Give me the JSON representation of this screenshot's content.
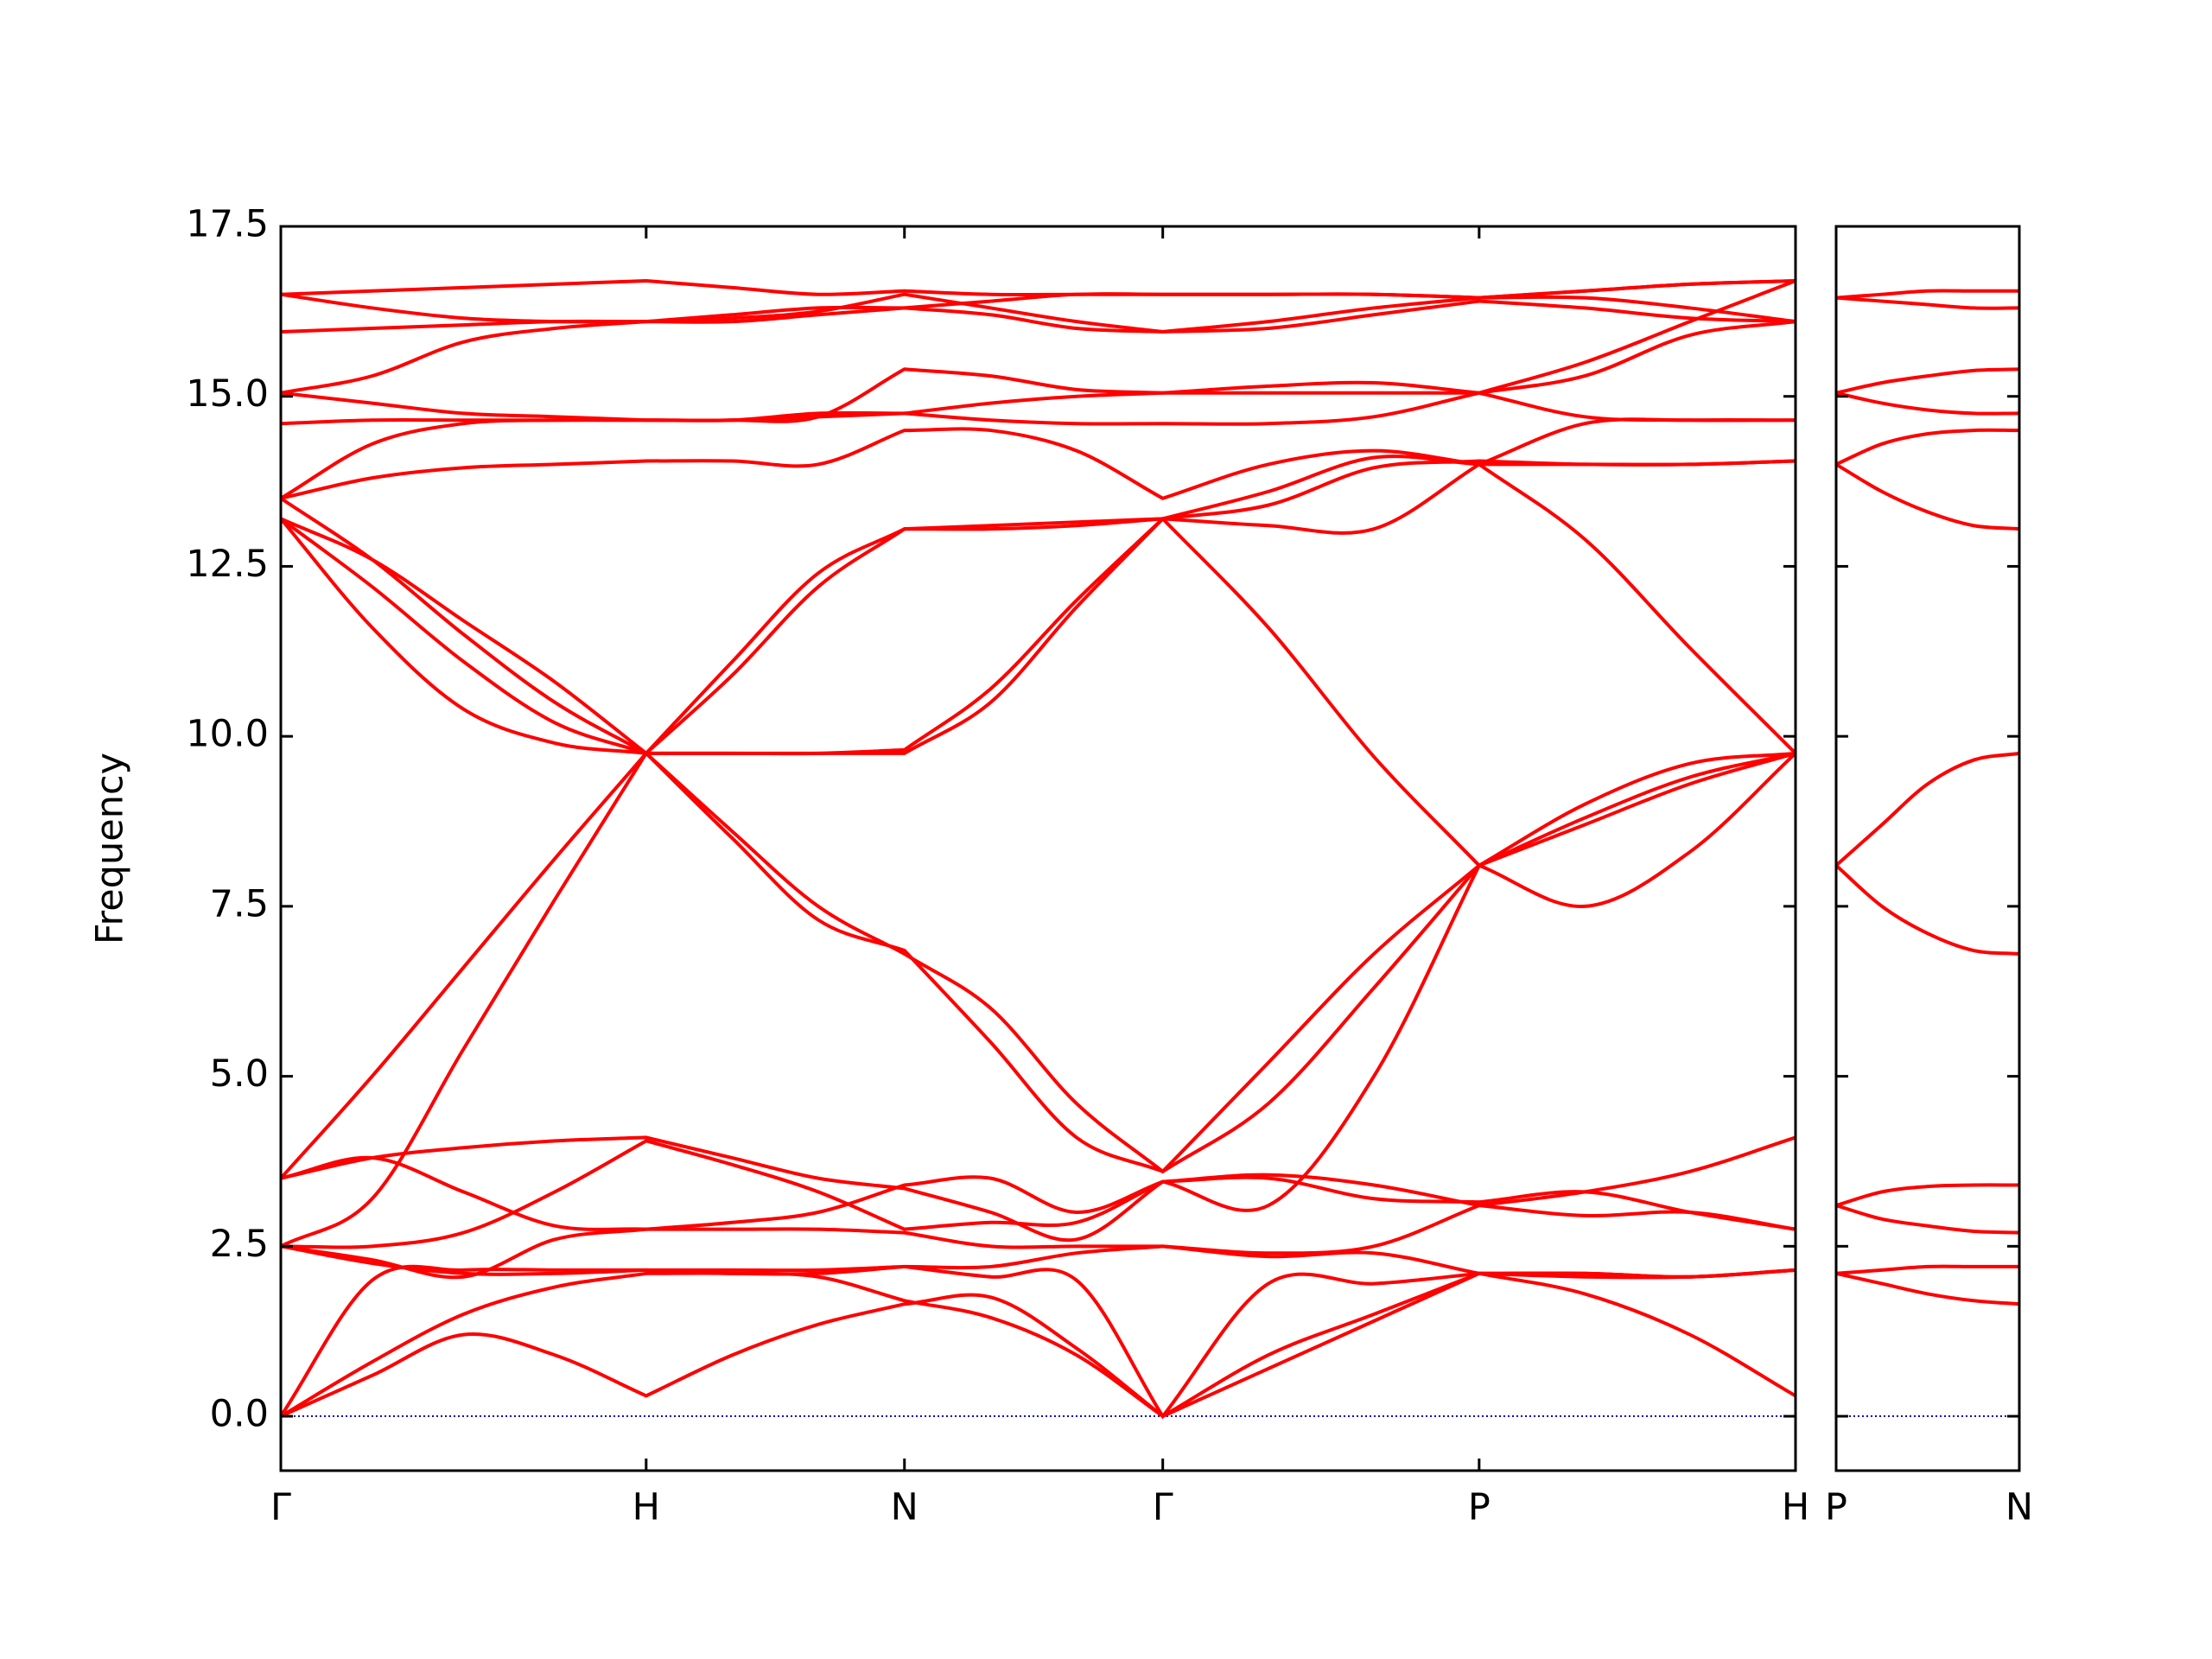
{
  "chart_data": [
    {
      "type": "line",
      "ylabel": "Frequency",
      "color": "#ff0000",
      "zero_line": {
        "value": 0,
        "color": "#0000cd"
      },
      "xlim": [
        0,
        4.146
      ],
      "ylim": [
        -0.8,
        17.5
      ],
      "xticks": [
        {
          "value": 0,
          "label": "Γ"
        },
        {
          "value": 1,
          "label": "H"
        },
        {
          "value": 1.707,
          "label": "N"
        },
        {
          "value": 2.414,
          "label": "Γ"
        },
        {
          "value": 3.28,
          "label": "P"
        },
        {
          "value": 4.146,
          "label": "H"
        }
      ],
      "yticks": [
        {
          "value": 0,
          "label": "0.0"
        },
        2.5,
        {
          "value": 5,
          "label": "5.0"
        },
        7.5,
        {
          "value": 10,
          "label": "10.0"
        },
        12.5,
        {
          "value": 15,
          "label": "15.0"
        },
        17.5
      ],
      "ytick_labels": true,
      "x": [
        0,
        0.25,
        0.5,
        0.75,
        1,
        1.236,
        1.471,
        1.707,
        1.943,
        2.178,
        2.414,
        2.703,
        2.992,
        3.28,
        3.569,
        3.857,
        4.146
      ],
      "series": [
        {
          "values": [
            0,
            0.6,
            1.2,
            0.9,
            0.3,
            0.9,
            1.35,
            1.65,
            1.75,
            1.0,
            0,
            0.9,
            1.5,
            2.1,
            1.8,
            1.2,
            0.3
          ]
        },
        {
          "values": [
            0,
            0.8,
            1.5,
            1.9,
            2.1,
            2.1,
            2.05,
            1.7,
            1.45,
            0.9,
            0,
            0.7,
            1.4,
            2.1,
            2.1,
            2.05,
            2.15
          ]
        },
        {
          "values": [
            0,
            2.0,
            2.15,
            2.15,
            2.15,
            2.1,
            2.1,
            2.2,
            2.05,
            2.0,
            0,
            1.95,
            1.95,
            2.1,
            2.05,
            2.05,
            2.15
          ]
        },
        {
          "values": [
            2.5,
            2.25,
            2.1,
            2.1,
            2.15,
            2.15,
            2.15,
            2.2,
            2.2,
            2.4,
            2.5,
            2.35,
            2.4,
            2.1,
            2.1,
            2.05,
            2.15
          ]
        },
        {
          "values": [
            2.5,
            2.3,
            2.05,
            2.6,
            2.75,
            2.75,
            2.75,
            2.7,
            2.5,
            2.5,
            2.5,
            2.4,
            2.5,
            3.1,
            2.95,
            3.0,
            2.75
          ]
        },
        {
          "values": [
            2.5,
            2.5,
            2.7,
            3.3,
            4.05,
            3.7,
            3.3,
            2.75,
            2.85,
            2.85,
            3.45,
            3.55,
            3.4,
            3.1,
            3.3,
            3.6,
            4.1
          ]
        },
        {
          "values": [
            3.5,
            3.8,
            3.3,
            2.8,
            2.75,
            2.85,
            3.0,
            3.4,
            3.5,
            3.0,
            3.45,
            3.5,
            3.2,
            3.15,
            3.3,
            3.0,
            2.75
          ]
        },
        {
          "values": [
            3.5,
            3.8,
            3.95,
            4.05,
            4.1,
            3.8,
            3.5,
            3.35,
            3.0,
            2.6,
            3.45,
            3.1,
            5.0,
            8.1,
            8.8,
            9.4,
            9.75
          ]
        },
        {
          "values": [
            3.5,
            5.0,
            6.6,
            8.2,
            9.75,
            11.1,
            12.4,
            13.05,
            13.1,
            13.15,
            13.2,
            11.6,
            9.7,
            8.1,
            8.7,
            9.3,
            9.75
          ]
        },
        {
          "values": [
            2.5,
            3.2,
            5.4,
            7.6,
            9.75,
            10.9,
            12.2,
            13.05,
            13.05,
            13.1,
            13.2,
            13.4,
            13.95,
            14.05,
            14.0,
            14.0,
            14.05
          ]
        },
        {
          "values": [
            13.2,
            11.6,
            10.4,
            9.9,
            9.75,
            9.75,
            9.75,
            9.75,
            10.5,
            11.9,
            13.2,
            13.1,
            13.05,
            14.0,
            12.9,
            11.3,
            9.75
          ]
        },
        {
          "values": [
            13.2,
            12.2,
            11.1,
            10.2,
            9.75,
            8.6,
            7.5,
            6.8,
            6.0,
            4.6,
            3.6,
            4.6,
            6.3,
            8.1,
            7.5,
            8.3,
            9.75
          ]
        },
        {
          "values": [
            13.5,
            12.6,
            11.5,
            10.5,
            9.75,
            8.5,
            7.3,
            6.85,
            5.5,
            4.1,
            3.6,
            5.2,
            6.8,
            8.1,
            9.0,
            9.6,
            9.75
          ]
        },
        {
          "values": [
            13.2,
            12.6,
            11.7,
            10.8,
            9.75,
            9.75,
            9.75,
            9.8,
            10.7,
            12.0,
            13.2,
            13.6,
            14.1,
            14.0,
            14.0,
            14.0,
            14.05
          ]
        },
        {
          "values": [
            13.5,
            13.8,
            13.95,
            14.0,
            14.05,
            14.05,
            14.0,
            14.5,
            14.5,
            14.2,
            13.5,
            14.0,
            14.2,
            14.0,
            14.6,
            14.65,
            14.65
          ]
        },
        {
          "values": [
            13.5,
            14.3,
            14.6,
            14.65,
            14.65,
            14.65,
            14.7,
            14.75,
            14.9,
            15.0,
            15.05,
            15.15,
            15.2,
            15.05,
            15.5,
            16.1,
            16.7
          ]
        },
        {
          "values": [
            14.6,
            14.65,
            14.65,
            14.65,
            14.65,
            14.65,
            14.75,
            14.75,
            14.65,
            14.6,
            14.6,
            14.6,
            14.7,
            15.05,
            15.3,
            15.9,
            16.1
          ]
        },
        {
          "values": [
            15.05,
            15.3,
            15.8,
            16.0,
            16.1,
            16.1,
            16.2,
            16.3,
            16.2,
            16.0,
            15.95,
            16.1,
            16.3,
            16.45,
            16.55,
            16.65,
            16.7
          ]
        },
        {
          "values": [
            15.05,
            14.9,
            14.75,
            14.7,
            14.65,
            14.65,
            14.7,
            15.4,
            15.3,
            15.1,
            15.05,
            15.05,
            15.05,
            15.05,
            14.7,
            14.65,
            14.65
          ]
        },
        {
          "values": [
            15.95,
            16.0,
            16.05,
            16.1,
            16.1,
            16.15,
            16.25,
            16.5,
            16.3,
            16.1,
            15.95,
            16.0,
            16.2,
            16.4,
            16.3,
            16.15,
            16.1
          ]
        },
        {
          "values": [
            16.5,
            16.3,
            16.15,
            16.1,
            16.1,
            16.2,
            16.3,
            16.3,
            16.4,
            16.5,
            16.5,
            16.5,
            16.5,
            16.45,
            16.45,
            16.3,
            16.1
          ]
        },
        {
          "values": [
            16.5,
            16.55,
            16.6,
            16.65,
            16.7,
            16.6,
            16.5,
            16.55,
            16.5,
            16.5,
            16.5,
            16.5,
            16.5,
            16.45,
            16.55,
            16.65,
            16.7
          ]
        }
      ]
    },
    {
      "type": "line",
      "color": "#ff0000",
      "zero_line": {
        "value": 0,
        "color": "#0000cd"
      },
      "xlim": [
        0,
        0.5
      ],
      "ylim": [
        -0.8,
        17.5
      ],
      "xticks": [
        {
          "value": 0,
          "label": "P"
        },
        {
          "value": 0.5,
          "label": "N"
        }
      ],
      "yticks": [
        0,
        2.5,
        5,
        7.5,
        10,
        12.5,
        15,
        17.5
      ],
      "ytick_labels": false,
      "x": [
        0,
        0.125,
        0.25,
        0.375,
        0.5
      ],
      "series": [
        {
          "values": [
            2.1,
            1.95,
            1.8,
            1.7,
            1.65
          ]
        },
        {
          "values": [
            2.1,
            2.15,
            2.2,
            2.2,
            2.2
          ]
        },
        {
          "values": [
            3.1,
            2.9,
            2.8,
            2.72,
            2.7
          ]
        },
        {
          "values": [
            3.1,
            3.3,
            3.38,
            3.4,
            3.4
          ]
        },
        {
          "values": [
            8.1,
            7.5,
            7.1,
            6.85,
            6.8
          ]
        },
        {
          "values": [
            8.1,
            8.7,
            9.3,
            9.65,
            9.75
          ]
        },
        {
          "values": [
            14.0,
            13.6,
            13.3,
            13.1,
            13.05
          ]
        },
        {
          "values": [
            14.0,
            14.3,
            14.45,
            14.5,
            14.5
          ]
        },
        {
          "values": [
            15.05,
            14.9,
            14.8,
            14.75,
            14.75
          ]
        },
        {
          "values": [
            15.05,
            15.2,
            15.3,
            15.38,
            15.4
          ]
        },
        {
          "values": [
            16.45,
            16.4,
            16.35,
            16.3,
            16.3
          ]
        },
        {
          "values": [
            16.45,
            16.5,
            16.55,
            16.55,
            16.55
          ]
        }
      ]
    }
  ]
}
